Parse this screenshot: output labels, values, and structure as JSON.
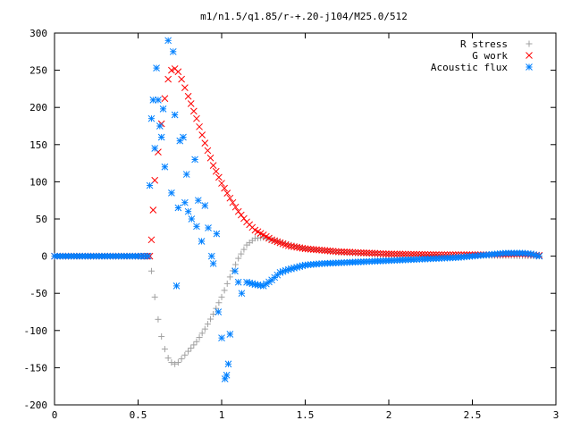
{
  "chart_data": {
    "type": "scatter",
    "title": "m1/n1.5/q1.85/r-+.20-j104/M25.0/512",
    "xlabel": "",
    "ylabel": "",
    "xlim": [
      0,
      3
    ],
    "ylim": [
      -200,
      300
    ],
    "xticks": [
      "0",
      "0.5",
      "1",
      "1.5",
      "2",
      "2.5",
      "3"
    ],
    "yticks": [
      "300",
      "250",
      "200",
      "150",
      "100",
      "50",
      "0",
      "-50",
      "-100",
      "-150",
      "-200"
    ],
    "grid": false,
    "legend_position": "top-right",
    "series": [
      {
        "name": "R stress",
        "marker": "plus",
        "color": "#a0a0a0",
        "points": [
          [
            0.0,
            0
          ],
          [
            0.2,
            0
          ],
          [
            0.4,
            0
          ],
          [
            0.5,
            0
          ],
          [
            0.56,
            0
          ],
          [
            0.58,
            -20
          ],
          [
            0.6,
            -55
          ],
          [
            0.62,
            -85
          ],
          [
            0.64,
            -108
          ],
          [
            0.66,
            -125
          ],
          [
            0.68,
            -137
          ],
          [
            0.7,
            -143
          ],
          [
            0.72,
            -145
          ],
          [
            0.74,
            -143
          ],
          [
            0.76,
            -138
          ],
          [
            0.8,
            -128
          ],
          [
            0.85,
            -115
          ],
          [
            0.9,
            -98
          ],
          [
            0.95,
            -78
          ],
          [
            1.0,
            -55
          ],
          [
            1.05,
            -28
          ],
          [
            1.1,
            -3
          ],
          [
            1.15,
            15
          ],
          [
            1.2,
            24
          ],
          [
            1.25,
            25
          ],
          [
            1.3,
            22
          ],
          [
            1.4,
            16
          ],
          [
            1.5,
            10
          ],
          [
            1.7,
            5
          ],
          [
            2.0,
            2
          ],
          [
            2.5,
            1
          ],
          [
            2.9,
            0
          ]
        ]
      },
      {
        "name": "G work",
        "marker": "cross",
        "color": "#ff0000",
        "points": [
          [
            0.0,
            0
          ],
          [
            0.3,
            0
          ],
          [
            0.5,
            0
          ],
          [
            0.57,
            0
          ],
          [
            0.58,
            22
          ],
          [
            0.59,
            62
          ],
          [
            0.6,
            102
          ],
          [
            0.62,
            140
          ],
          [
            0.64,
            178
          ],
          [
            0.66,
            212
          ],
          [
            0.68,
            238
          ],
          [
            0.7,
            250
          ],
          [
            0.72,
            252
          ],
          [
            0.74,
            248
          ],
          [
            0.76,
            238
          ],
          [
            0.8,
            215
          ],
          [
            0.85,
            185
          ],
          [
            0.9,
            152
          ],
          [
            0.95,
            122
          ],
          [
            1.0,
            98
          ],
          [
            1.05,
            78
          ],
          [
            1.1,
            60
          ],
          [
            1.15,
            46
          ],
          [
            1.2,
            35
          ],
          [
            1.3,
            22
          ],
          [
            1.4,
            14
          ],
          [
            1.5,
            10
          ],
          [
            1.7,
            6
          ],
          [
            2.0,
            3
          ],
          [
            2.3,
            2
          ],
          [
            2.6,
            2
          ],
          [
            2.8,
            3
          ],
          [
            2.9,
            1
          ]
        ]
      },
      {
        "name": "Acoustic flux",
        "marker": "star",
        "color": "#0080ff",
        "points": [
          [
            0.0,
            0
          ],
          [
            0.3,
            0
          ],
          [
            0.5,
            0
          ],
          [
            0.56,
            0
          ],
          [
            0.57,
            95
          ],
          [
            0.58,
            185
          ],
          [
            0.59,
            210
          ],
          [
            0.6,
            145
          ],
          [
            0.61,
            253
          ],
          [
            0.62,
            210
          ],
          [
            0.63,
            175
          ],
          [
            0.64,
            160
          ],
          [
            0.65,
            198
          ],
          [
            0.66,
            120
          ],
          [
            0.68,
            290
          ],
          [
            0.7,
            85
          ],
          [
            0.71,
            275
          ],
          [
            0.72,
            190
          ],
          [
            0.73,
            -40
          ],
          [
            0.74,
            65
          ],
          [
            0.75,
            155
          ],
          [
            0.77,
            160
          ],
          [
            0.78,
            72
          ],
          [
            0.79,
            110
          ],
          [
            0.8,
            60
          ],
          [
            0.82,
            50
          ],
          [
            0.84,
            130
          ],
          [
            0.85,
            40
          ],
          [
            0.86,
            75
          ],
          [
            0.88,
            20
          ],
          [
            0.9,
            68
          ],
          [
            0.92,
            38
          ],
          [
            0.94,
            0
          ],
          [
            0.95,
            -10
          ],
          [
            0.97,
            30
          ],
          [
            0.98,
            -75
          ],
          [
            1.0,
            -110
          ],
          [
            1.02,
            -165
          ],
          [
            1.03,
            -160
          ],
          [
            1.04,
            -145
          ],
          [
            1.05,
            -105
          ],
          [
            1.08,
            -20
          ],
          [
            1.1,
            -35
          ],
          [
            1.12,
            -50
          ],
          [
            1.15,
            -35
          ],
          [
            1.2,
            -38
          ],
          [
            1.25,
            -40
          ],
          [
            1.3,
            -32
          ],
          [
            1.35,
            -22
          ],
          [
            1.4,
            -18
          ],
          [
            1.5,
            -12
          ],
          [
            1.6,
            -10
          ],
          [
            1.8,
            -8
          ],
          [
            2.0,
            -6
          ],
          [
            2.2,
            -4
          ],
          [
            2.4,
            -2
          ],
          [
            2.5,
            0
          ],
          [
            2.6,
            2
          ],
          [
            2.7,
            4
          ],
          [
            2.8,
            4
          ],
          [
            2.85,
            3
          ],
          [
            2.9,
            0
          ]
        ]
      }
    ]
  }
}
